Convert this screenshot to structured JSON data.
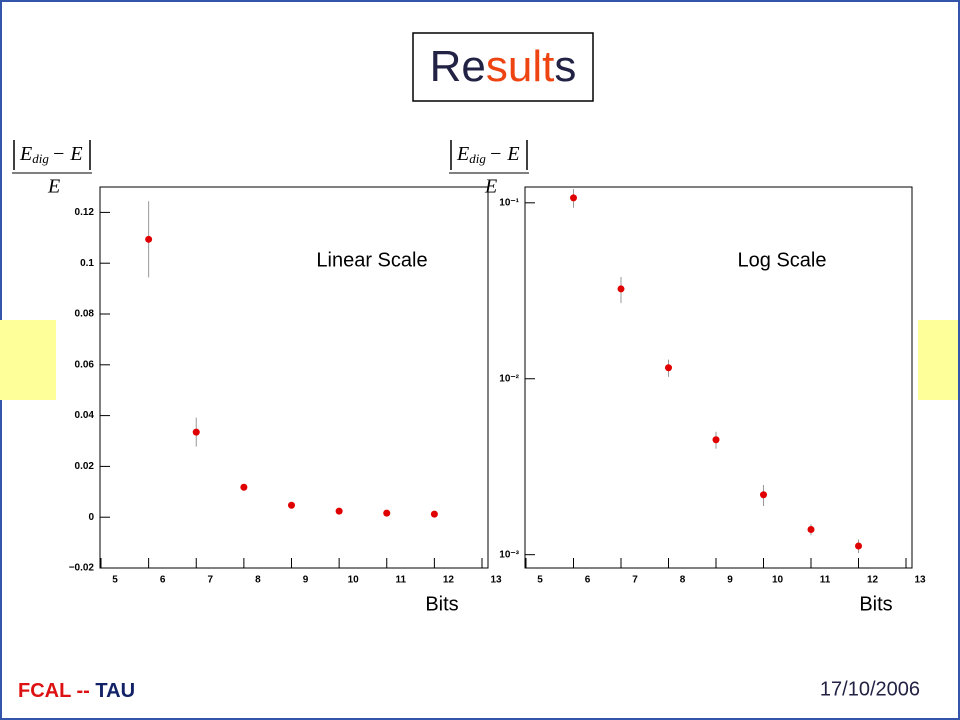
{
  "title_parts": [
    "Re",
    "sult",
    "s"
  ],
  "footer_parts": [
    "FCAL --",
    "TAU"
  ],
  "date": "17/10/2006",
  "chart_data": [
    {
      "type": "scatter",
      "annotation": "Linear Scale",
      "xlabel": "Bits",
      "ylabel": {
        "var": "E",
        "sub": "dig",
        "rest": "− E",
        "denominator": "E"
      },
      "log_y": false,
      "color": "#e00000",
      "error_color": "#999999",
      "x": [
        6,
        7,
        8,
        9,
        10,
        11,
        12
      ],
      "values": [
        0.1094,
        0.0335,
        0.0118,
        0.0047,
        0.0024,
        0.0016,
        0.0012
      ],
      "errors": [
        0.015,
        0.0057,
        0.001,
        0.0005,
        0.0003,
        0.0002,
        0.0001
      ],
      "xlim": [
        5,
        13
      ],
      "xticks": [
        5,
        6,
        7,
        8,
        9,
        10,
        11,
        12,
        13
      ],
      "ylim": [
        -0.02,
        0.13
      ],
      "yticks": [
        {
          "value": -0.02,
          "label": "−0.02"
        },
        0,
        0.02,
        0.04,
        0.06,
        0.08,
        0.1,
        0.12
      ]
    },
    {
      "type": "scatter",
      "annotation": "Log Scale",
      "xlabel": "Bits",
      "ylabel": {
        "var": "E",
        "sub": "dig",
        "rest": "− E",
        "denominator": "E"
      },
      "log_y": true,
      "color": "#e00000",
      "error_color": "#999999",
      "x": [
        6,
        7,
        8,
        9,
        10,
        11,
        12
      ],
      "values": [
        0.1067,
        0.0324,
        0.01155,
        0.0045,
        0.00219,
        0.00139,
        0.00112
      ],
      "errors": [
        0.013,
        0.0055,
        0.0013,
        0.0005,
        0.0003,
        0.0001,
        0.0001
      ],
      "xlim": [
        5,
        13
      ],
      "xticks": [
        5,
        6,
        7,
        8,
        9,
        10,
        11,
        12,
        13
      ],
      "ylim": [
        0.00084,
        0.123
      ],
      "yticks": [
        {
          "value": 0.001,
          "label": "10⁻³"
        },
        {
          "value": 0.01,
          "label": "10⁻²"
        },
        {
          "value": 0.1,
          "label": "10⁻¹"
        }
      ]
    }
  ]
}
